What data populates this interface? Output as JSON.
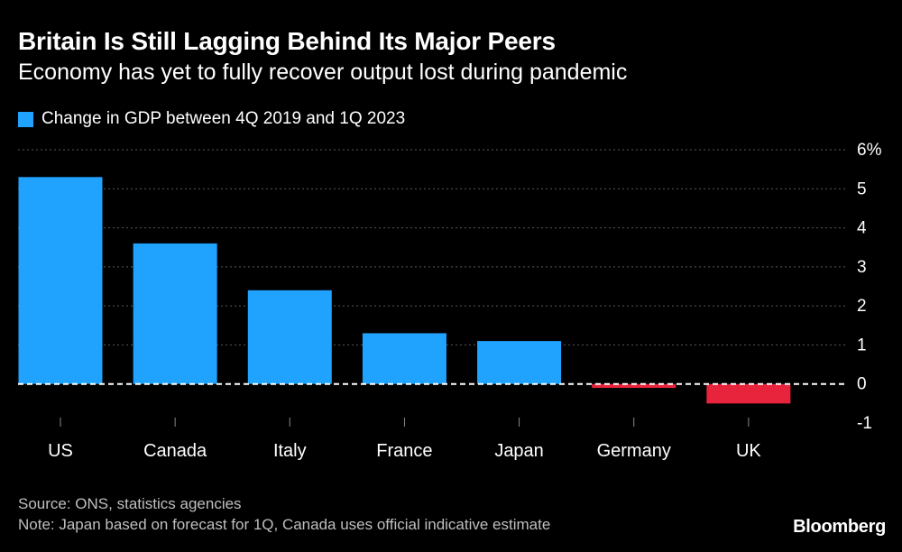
{
  "header": {
    "title": "Britain Is Still Lagging Behind Its Major Peers",
    "subtitle": "Economy has yet to fully recover output lost during pandemic"
  },
  "legend": {
    "label": "Change in GDP between 4Q 2019 and 1Q 2023",
    "color": "#1fa3ff"
  },
  "chart_data": {
    "type": "bar",
    "categories": [
      "US",
      "Canada",
      "Italy",
      "France",
      "Japan",
      "Germany",
      "UK"
    ],
    "series": [
      {
        "name": "Change in GDP between 4Q 2019 and 1Q 2023",
        "values": [
          5.3,
          3.6,
          2.4,
          1.3,
          1.1,
          -0.1,
          -0.5
        ]
      }
    ],
    "ylim": [
      -1,
      6
    ],
    "yticks": [
      -1,
      0,
      1,
      2,
      3,
      4,
      5,
      6
    ],
    "ytick_labels": [
      "-1",
      "0",
      "1",
      "2",
      "3",
      "4",
      "5",
      "6%"
    ],
    "positive_color": "#1fa3ff",
    "negative_color": "#e8243c",
    "grid": true,
    "legend_position": "top-left"
  },
  "footer": {
    "source": "Source: ONS, statistics agencies",
    "note": "Note: Japan based on forecast for 1Q, Canada uses official indicative estimate",
    "brand": "Bloomberg"
  }
}
